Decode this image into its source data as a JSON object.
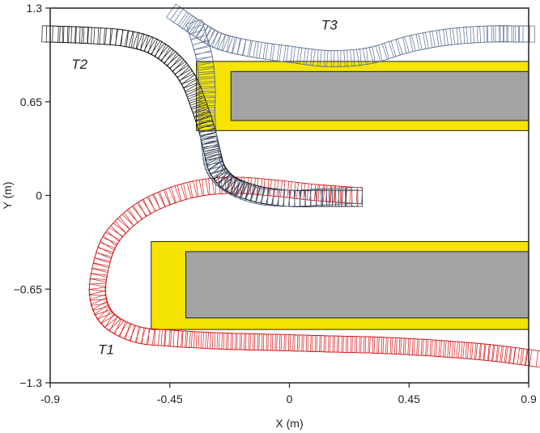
{
  "chart_data": {
    "type": "scatter",
    "title": "",
    "xlabel": "X (m)",
    "ylabel": "Y (m)",
    "xlim": [
      -0.9,
      0.9
    ],
    "ylim": [
      -1.3,
      1.3
    ],
    "xticks": [
      -0.9,
      -0.45,
      0,
      0.45,
      0.9
    ],
    "xtick_labels": [
      "-0.9",
      "-0.45",
      "0",
      "0.45",
      "0.9"
    ],
    "yticks": [
      -1.3,
      -0.65,
      0,
      0.65,
      1.3
    ],
    "ytick_labels": [
      "−1.3",
      "−0.65",
      "0",
      "0.65",
      "1.3"
    ],
    "grid": false,
    "legend": "none",
    "obstacles": [
      {
        "name": "upper",
        "outer_x": [
          -0.35,
          0.9
        ],
        "outer_y": [
          0.45,
          0.93
        ],
        "inner_x": [
          -0.22,
          0.9
        ],
        "inner_y": [
          0.52,
          0.86
        ],
        "outer_color": "#f4e400",
        "inner_color": "#a3a3a3"
      },
      {
        "name": "lower",
        "outer_x": [
          -0.52,
          0.9
        ],
        "outer_y": [
          -0.93,
          -0.32
        ],
        "inner_x": [
          -0.39,
          0.9
        ],
        "inner_y": [
          -0.85,
          -0.39
        ],
        "outer_color": "#f4e400",
        "inner_color": "#a3a3a3"
      }
    ],
    "series": [
      {
        "label": "T1",
        "color": "#d81818",
        "label_position": [
          -0.72,
          -1.1
        ],
        "points": [
          [
            0.92,
            -1.13
          ],
          [
            0.75,
            -1.09
          ],
          [
            0.55,
            -1.06
          ],
          [
            0.35,
            -1.04
          ],
          [
            0.15,
            -1.03
          ],
          [
            -0.05,
            -1.02
          ],
          [
            -0.25,
            -1.01
          ],
          [
            -0.45,
            -0.99
          ],
          [
            -0.58,
            -0.96
          ],
          [
            -0.68,
            -0.86
          ],
          [
            -0.72,
            -0.7
          ],
          [
            -0.71,
            -0.5
          ],
          [
            -0.67,
            -0.3
          ],
          [
            -0.58,
            -0.13
          ],
          [
            -0.47,
            -0.02
          ],
          [
            -0.34,
            0.05
          ],
          [
            -0.2,
            0.07
          ],
          [
            -0.05,
            0.05
          ],
          [
            0.1,
            0.02
          ],
          [
            0.25,
            0.0
          ]
        ]
      },
      {
        "label": "T2",
        "color": "#111111",
        "label_position": [
          -0.82,
          0.88
        ],
        "points": [
          [
            -0.9,
            1.12
          ],
          [
            -0.75,
            1.11
          ],
          [
            -0.62,
            1.09
          ],
          [
            -0.52,
            1.04
          ],
          [
            -0.44,
            0.94
          ],
          [
            -0.38,
            0.8
          ],
          [
            -0.34,
            0.62
          ],
          [
            -0.31,
            0.45
          ],
          [
            -0.29,
            0.3
          ],
          [
            -0.27,
            0.18
          ],
          [
            -0.22,
            0.08
          ],
          [
            -0.12,
            0.01
          ],
          [
            0.0,
            -0.02
          ],
          [
            0.12,
            -0.02
          ],
          [
            0.25,
            -0.02
          ]
        ]
      },
      {
        "label": "T3",
        "color": "#5a6e91",
        "label_position": [
          0.12,
          1.15
        ],
        "points": [
          [
            -0.42,
            1.25
          ],
          [
            -0.34,
            1.15
          ],
          [
            -0.26,
            1.07
          ],
          [
            -0.15,
            1.02
          ],
          [
            0.0,
            0.98
          ],
          [
            0.15,
            0.95
          ],
          [
            0.3,
            0.97
          ],
          [
            0.45,
            1.05
          ],
          [
            0.6,
            1.1
          ],
          [
            0.75,
            1.12
          ],
          [
            0.9,
            1.12
          ]
        ]
      },
      {
        "label": "",
        "color": "#5a6e91",
        "label_position": null,
        "points": [
          [
            -0.35,
            1.15
          ],
          [
            -0.32,
            0.95
          ],
          [
            -0.31,
            0.75
          ],
          [
            -0.31,
            0.55
          ],
          [
            -0.3,
            0.35
          ],
          [
            -0.28,
            0.18
          ],
          [
            -0.22,
            0.07
          ],
          [
            -0.12,
            0.0
          ],
          [
            0.0,
            -0.02
          ],
          [
            0.12,
            -0.01
          ],
          [
            0.25,
            0.0
          ]
        ]
      }
    ]
  }
}
